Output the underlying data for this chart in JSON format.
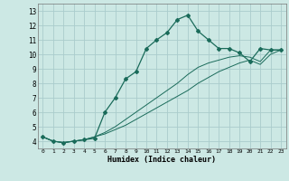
{
  "xlabel": "Humidex (Indice chaleur)",
  "bg_color": "#cce8e4",
  "grid_color": "#aacccc",
  "line_color": "#1a6b5a",
  "xlim": [
    -0.5,
    23.5
  ],
  "ylim": [
    3.5,
    13.5
  ],
  "xticks": [
    0,
    1,
    2,
    3,
    4,
    5,
    6,
    7,
    8,
    9,
    10,
    11,
    12,
    13,
    14,
    15,
    16,
    17,
    18,
    19,
    20,
    21,
    22,
    23
  ],
  "yticks": [
    4,
    5,
    6,
    7,
    8,
    9,
    10,
    11,
    12,
    13
  ],
  "line1_x": [
    0,
    1,
    2,
    3,
    4,
    5,
    6,
    7,
    8,
    9,
    10,
    11,
    12,
    13,
    14,
    15,
    16,
    17,
    18,
    19,
    20,
    21,
    22,
    23
  ],
  "line1_y": [
    4.3,
    4.0,
    3.9,
    4.0,
    4.1,
    4.2,
    6.0,
    7.0,
    8.3,
    8.8,
    10.4,
    11.0,
    11.5,
    12.4,
    12.7,
    11.6,
    11.0,
    10.4,
    10.4,
    10.1,
    9.5,
    10.4,
    10.3,
    10.3
  ],
  "line2_x": [
    0,
    1,
    2,
    3,
    4,
    5,
    6,
    7,
    8,
    9,
    10,
    11,
    12,
    13,
    14,
    15,
    16,
    17,
    18,
    19,
    20,
    21,
    22,
    23
  ],
  "line2_y": [
    4.3,
    4.0,
    3.9,
    4.0,
    4.1,
    4.3,
    4.6,
    5.0,
    5.5,
    6.0,
    6.5,
    7.0,
    7.5,
    8.0,
    8.6,
    9.1,
    9.4,
    9.6,
    9.8,
    9.9,
    9.8,
    9.5,
    10.3,
    10.3
  ],
  "line3_x": [
    0,
    1,
    2,
    3,
    4,
    5,
    6,
    7,
    8,
    9,
    10,
    11,
    12,
    13,
    14,
    15,
    16,
    17,
    18,
    19,
    20,
    21,
    22,
    23
  ],
  "line3_y": [
    4.3,
    4.0,
    3.9,
    4.0,
    4.1,
    4.3,
    4.5,
    4.8,
    5.1,
    5.5,
    5.9,
    6.3,
    6.7,
    7.1,
    7.5,
    8.0,
    8.4,
    8.8,
    9.1,
    9.4,
    9.6,
    9.3,
    10.0,
    10.3
  ]
}
